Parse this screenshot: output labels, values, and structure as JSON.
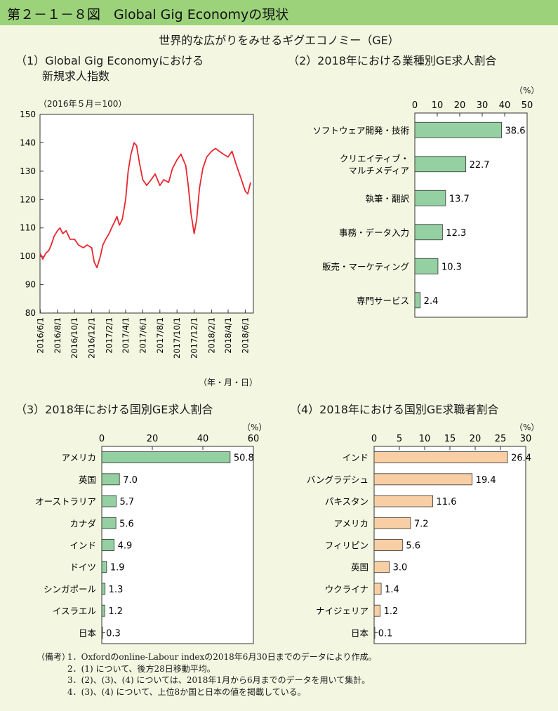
{
  "figure_title": "第２－１－８図　Global Gig Economyの現状",
  "subtitle": "世界的な広がりをみせるギグエコノミー（GE）",
  "colors": {
    "header": "#9bd27a",
    "background": "#f3f7e1",
    "line": "#e8262e",
    "green_bar": "#94d0a1",
    "orange_bar": "#f8cfa4"
  },
  "notes": {
    "label": "（備考）",
    "lines": [
      "1．Oxfordのonline-Labour indexの2018年6月30日までのデータにより作成。",
      "2．(1) について、後方28日移動平均。",
      "3．(2)、(3)、(4) については、2018年1月から6月までのデータを用いて集計。",
      "4．(3)、(4) について、上位8か国と日本の値を掲載している。"
    ]
  },
  "chart_data": [
    {
      "type": "line",
      "title_line1": "（1）Global Gig Economyにおける",
      "title_line2": "新規求人指数",
      "unit_note": "（2016年５月＝100）",
      "xlabel": "（年・月・日）",
      "ylim": [
        80,
        150
      ],
      "yticks": [
        80,
        90,
        100,
        110,
        120,
        130,
        140,
        150
      ],
      "xlim": [
        "2016-05-31",
        "2018-06-30"
      ],
      "xtick_labels": [
        "2016/6/1",
        "2016/8/1",
        "2016/10/1",
        "2016/12/1",
        "2017/2/1",
        "2017/4/1",
        "2017/6/1",
        "2017/8/1",
        "2017/10/1",
        "2017/12/1",
        "2018/2/1",
        "2018/4/1",
        "2018/6/1"
      ],
      "xtick_dates": [
        "2016-06-01",
        "2016-08-01",
        "2016-10-01",
        "2016-12-01",
        "2017-02-01",
        "2017-04-01",
        "2017-06-01",
        "2017-08-01",
        "2017-10-01",
        "2017-12-01",
        "2018-02-01",
        "2018-04-01",
        "2018-06-01"
      ],
      "series": [
        {
          "points": [
            [
              "2016-06-01",
              101
            ],
            [
              "2016-06-10",
              99
            ],
            [
              "2016-06-20",
              101
            ],
            [
              "2016-07-01",
              102
            ],
            [
              "2016-07-10",
              104
            ],
            [
              "2016-07-20",
              107
            ],
            [
              "2016-08-01",
              109
            ],
            [
              "2016-08-10",
              110
            ],
            [
              "2016-08-20",
              108
            ],
            [
              "2016-09-01",
              109
            ],
            [
              "2016-09-15",
              106
            ],
            [
              "2016-10-01",
              106
            ],
            [
              "2016-10-15",
              104
            ],
            [
              "2016-11-01",
              103
            ],
            [
              "2016-11-15",
              104
            ],
            [
              "2016-12-01",
              103
            ],
            [
              "2016-12-10",
              98
            ],
            [
              "2016-12-20",
              96
            ],
            [
              "2017-01-01",
              100
            ],
            [
              "2017-01-10",
              104
            ],
            [
              "2017-01-20",
              106
            ],
            [
              "2017-02-01",
              108
            ],
            [
              "2017-02-10",
              110
            ],
            [
              "2017-02-20",
              112
            ],
            [
              "2017-03-01",
              114
            ],
            [
              "2017-03-10",
              111
            ],
            [
              "2017-03-20",
              113
            ],
            [
              "2017-04-01",
              120
            ],
            [
              "2017-04-10",
              130
            ],
            [
              "2017-04-20",
              136
            ],
            [
              "2017-05-01",
              140
            ],
            [
              "2017-05-10",
              139
            ],
            [
              "2017-05-20",
              133
            ],
            [
              "2017-06-01",
              127
            ],
            [
              "2017-06-15",
              125
            ],
            [
              "2017-07-01",
              127
            ],
            [
              "2017-07-15",
              129
            ],
            [
              "2017-08-01",
              125
            ],
            [
              "2017-08-15",
              127
            ],
            [
              "2017-09-01",
              126
            ],
            [
              "2017-09-15",
              131
            ],
            [
              "2017-10-01",
              134
            ],
            [
              "2017-10-15",
              136
            ],
            [
              "2017-11-01",
              132
            ],
            [
              "2017-11-10",
              125
            ],
            [
              "2017-11-20",
              115
            ],
            [
              "2017-12-01",
              108
            ],
            [
              "2017-12-10",
              113
            ],
            [
              "2017-12-20",
              124
            ],
            [
              "2018-01-01",
              131
            ],
            [
              "2018-01-15",
              135
            ],
            [
              "2018-02-01",
              137
            ],
            [
              "2018-02-15",
              138
            ],
            [
              "2018-03-01",
              137
            ],
            [
              "2018-03-15",
              136
            ],
            [
              "2018-04-01",
              135
            ],
            [
              "2018-04-15",
              137
            ],
            [
              "2018-05-01",
              132
            ],
            [
              "2018-05-15",
              128
            ],
            [
              "2018-06-01",
              123
            ],
            [
              "2018-06-10",
              122
            ],
            [
              "2018-06-20",
              126
            ]
          ]
        }
      ]
    },
    {
      "type": "bar",
      "orientation": "horizontal",
      "title": "（2）2018年における業種別GE求人割合",
      "unit": "（%）",
      "xlim": [
        0,
        50
      ],
      "xticks": [
        0,
        10,
        20,
        30,
        40,
        50
      ],
      "categories": [
        "ソフトウェア開発・技術",
        "クリエイティブ・\nマルチメディア",
        "執筆・翻訳",
        "事務・データ入力",
        "販売・マーケティング",
        "専門サービス"
      ],
      "values": [
        38.6,
        22.7,
        13.7,
        12.3,
        10.3,
        2.4
      ],
      "value_labels": [
        "38.6",
        "22.7",
        "13.7",
        "12.3",
        "10.3",
        "2.4"
      ],
      "color": "#94d0a1"
    },
    {
      "type": "bar",
      "orientation": "horizontal",
      "title": "（3）2018年における国別GE求人割合",
      "unit": "（%）",
      "xlim": [
        0,
        60
      ],
      "xticks": [
        0,
        20,
        40,
        60
      ],
      "categories": [
        "アメリカ",
        "英国",
        "オーストラリア",
        "カナダ",
        "インド",
        "ドイツ",
        "シンガポール",
        "イスラエル",
        "日本"
      ],
      "values": [
        50.8,
        7.0,
        5.7,
        5.6,
        4.9,
        1.9,
        1.3,
        1.2,
        0.3
      ],
      "value_labels": [
        "50.8",
        "7.0",
        "5.7",
        "5.6",
        "4.9",
        "1.9",
        "1.3",
        "1.2",
        "0.3"
      ],
      "color": "#94d0a1"
    },
    {
      "type": "bar",
      "orientation": "horizontal",
      "title": "（4）2018年における国別GE求職者割合",
      "unit": "（%）",
      "xlim": [
        0,
        30
      ],
      "xticks": [
        0,
        5,
        10,
        15,
        20,
        25,
        30
      ],
      "categories": [
        "インド",
        "バングラデシュ",
        "パキスタン",
        "アメリカ",
        "フィリピン",
        "英国",
        "ウクライナ",
        "ナイジェリア",
        "日本"
      ],
      "values": [
        26.4,
        19.4,
        11.6,
        7.2,
        5.6,
        3.0,
        1.4,
        1.2,
        0.1
      ],
      "value_labels": [
        "26.4",
        "19.4",
        "11.6",
        "7.2",
        "5.6",
        "3.0",
        "1.4",
        "1.2",
        "0.1"
      ],
      "color": "#f8cfa4"
    }
  ]
}
